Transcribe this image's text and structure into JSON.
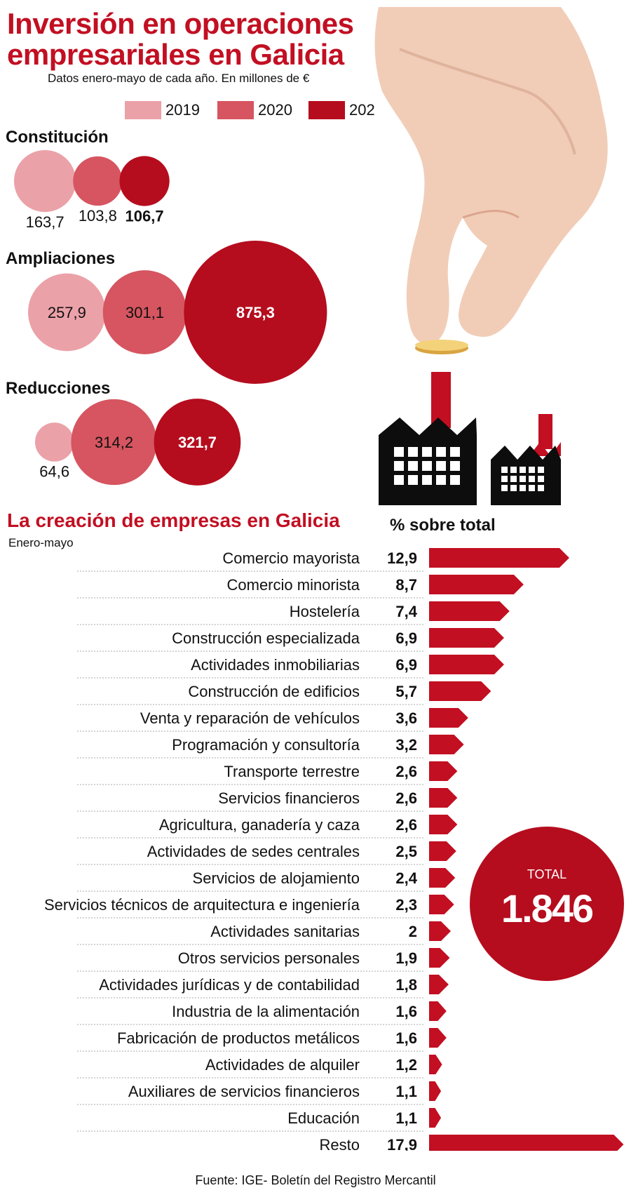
{
  "panel1": {
    "title": "Inversión en operaciones empresariales en Galicia",
    "subtitle": "Datos enero-mayo de cada año. En millones de €",
    "legend": [
      "2019",
      "2020",
      "202"
    ]
  },
  "panel2": {
    "title": "La creación de empresas en Galicia",
    "subtitle": "Enero-mayo",
    "column_header": "% sobre total",
    "total_label": "TOTAL",
    "total_value": "1.846"
  },
  "source": "Fuente: IGE- Boletín del Registro Mercantil",
  "colors": {
    "y2019": "#eba1a8",
    "y2020": "#d65560",
    "y2021": "#b50d1e",
    "bar": "#c20f22"
  },
  "chart_data": [
    {
      "type": "bubble",
      "series_names": [
        "2019",
        "2020",
        "202"
      ],
      "groups": [
        {
          "name": "Constitución",
          "values": [
            163.7,
            103.8,
            106.7
          ],
          "labels": [
            "163,7",
            "103,8",
            "106,7"
          ]
        },
        {
          "name": "Ampliaciones",
          "values": [
            257.9,
            301.1,
            875.3
          ],
          "labels": [
            "257,9",
            "301,1",
            "875,3"
          ]
        },
        {
          "name": "Reducciones",
          "values": [
            64.6,
            314.2,
            321.7
          ],
          "labels": [
            "64,6",
            "314,2",
            "321,7"
          ]
        }
      ]
    },
    {
      "type": "bar",
      "orientation": "horizontal",
      "categories": [
        "Comercio mayorista",
        "Comercio minorista",
        "Hostelería",
        "Construcción especializada",
        "Actividades inmobiliarias",
        "Construcción de edificios",
        "Venta y reparación de vehículos",
        "Programación y consultoría",
        "Transporte terrestre",
        "Servicios financieros",
        "Agricultura, ganadería y caza",
        "Actividades de sedes centrales",
        "Servicios de alojamiento",
        "Servicios técnicos de arquitectura e ingeniería",
        "Actividades sanitarias",
        "Otros servicios personales",
        "Actividades jurídicas y de contabilidad",
        "Industria de la alimentación",
        "Fabricación de productos metálicos",
        "Actividades de alquiler",
        "Auxiliares de servicios financieros",
        "Educación",
        "Resto"
      ],
      "values": [
        12.9,
        8.7,
        7.4,
        6.9,
        6.9,
        5.7,
        3.6,
        3.2,
        2.6,
        2.6,
        2.6,
        2.5,
        2.4,
        2.3,
        2,
        1.9,
        1.8,
        1.6,
        1.6,
        1.2,
        1.1,
        1.1,
        17.9
      ],
      "value_labels": [
        "12,9",
        "8,7",
        "7,4",
        "6,9",
        "6,9",
        "5,7",
        "3,6",
        "3,2",
        "2,6",
        "2,6",
        "2,6",
        "2,5",
        "2,4",
        "2,3",
        "2",
        "1,9",
        "1,8",
        "1,6",
        "1,6",
        "1,2",
        "1,1",
        "1,1",
        "17,9"
      ]
    }
  ]
}
